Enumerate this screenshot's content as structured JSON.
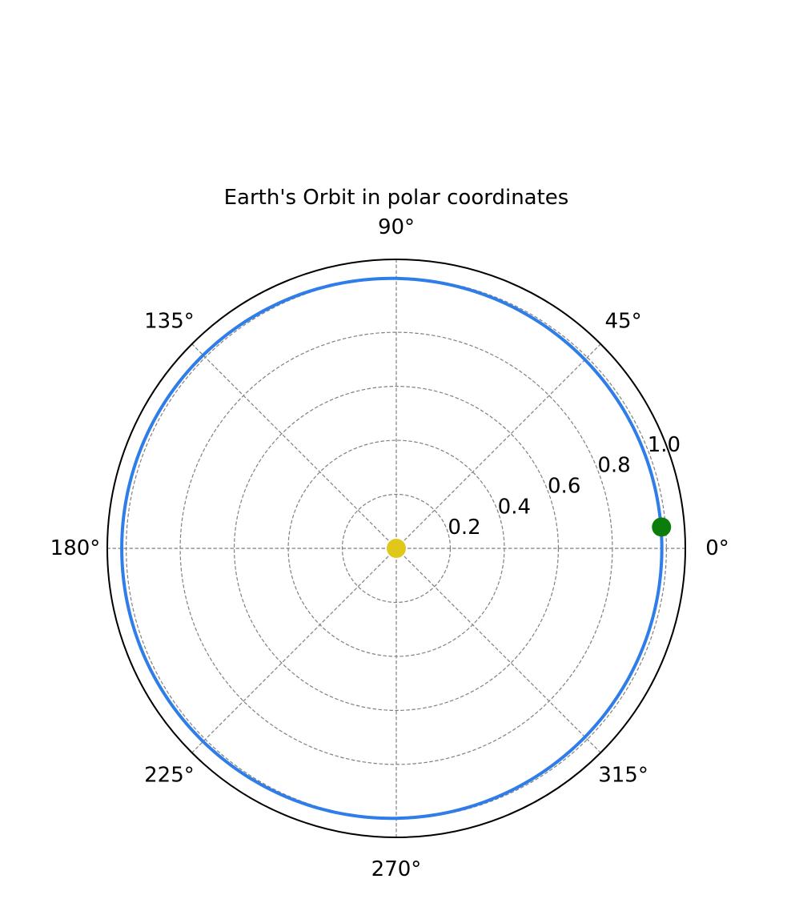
{
  "chart_data": {
    "type": "line",
    "projection": "polar",
    "title": "Earth's Orbit in polar coordinates",
    "theta_ticks_deg": [
      0,
      45,
      90,
      135,
      180,
      225,
      270,
      315
    ],
    "theta_tick_labels": [
      "0°",
      "45°",
      "90°",
      "135°",
      "180°",
      "225°",
      "270°",
      "315°"
    ],
    "r_ticks": [
      0.2,
      0.4,
      0.6,
      0.8,
      1.0
    ],
    "r_tick_labels": [
      "0.2",
      "0.4",
      "0.6",
      "0.8",
      "1.0"
    ],
    "r_label_angle_deg": 22.5,
    "rlim": [
      0,
      1.07
    ],
    "grid": true,
    "series": [
      {
        "kind": "orbit",
        "description_type": "conic",
        "semi_major_axis": 0.9997,
        "eccentricity": 0.0167,
        "perihelion_angle_deg": 0,
        "color": "#2f7de8"
      },
      {
        "kind": "point",
        "theta_deg": 4.6,
        "r": 0.985,
        "color": "#0a7d0a"
      },
      {
        "kind": "point",
        "theta_deg": 0,
        "r": 0,
        "color": "#e0c81a"
      }
    ]
  }
}
